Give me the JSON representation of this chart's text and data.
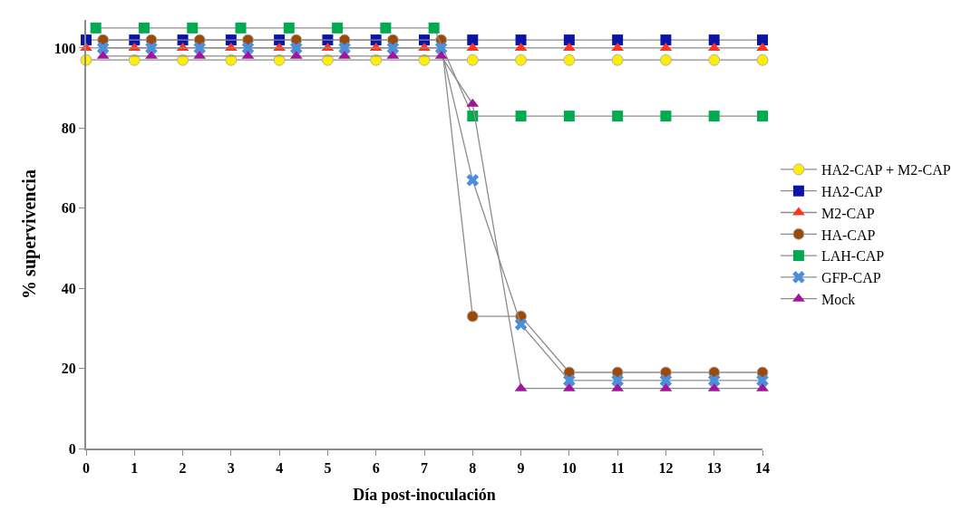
{
  "chart_data": {
    "type": "line",
    "xlabel": "Día post-inoculación",
    "ylabel": "% supervivencia",
    "xlim": [
      0,
      14
    ],
    "ylim": [
      0,
      107
    ],
    "xticks": [
      0,
      1,
      2,
      3,
      4,
      5,
      6,
      7,
      8,
      9,
      10,
      11,
      12,
      13,
      14
    ],
    "yticks": [
      0,
      20,
      40,
      60,
      80,
      100
    ],
    "legend": "right",
    "line_style": "solid",
    "series": [
      {
        "name": "HA2-CAP + M2-CAP",
        "color": "#ffee00",
        "marker": "circle",
        "x": [
          0,
          1,
          2,
          3,
          4,
          5,
          6,
          7,
          8,
          9,
          10,
          11,
          12,
          13,
          14
        ],
        "values": [
          97,
          97,
          97,
          97,
          97,
          97,
          97,
          97,
          97,
          97,
          97,
          97,
          97,
          97,
          97
        ]
      },
      {
        "name": "HA2-CAP",
        "color": "#0a14a8",
        "marker": "square",
        "x": [
          0,
          1,
          2,
          3,
          4,
          5,
          6,
          7,
          8,
          9,
          10,
          11,
          12,
          13,
          14
        ],
        "values": [
          102,
          102,
          102,
          102,
          102,
          102,
          102,
          102,
          102,
          102,
          102,
          102,
          102,
          102,
          102
        ]
      },
      {
        "name": "M2-CAP",
        "color": "#ff3322",
        "marker": "triangle",
        "x": [
          0,
          1,
          2,
          3,
          4,
          5,
          6,
          7,
          8,
          9,
          10,
          11,
          12,
          13,
          14
        ],
        "values": [
          100,
          100,
          100,
          100,
          100,
          100,
          100,
          100,
          100,
          100,
          100,
          100,
          100,
          100,
          100
        ]
      },
      {
        "name": "HA-CAP",
        "color": "#9c4a06",
        "marker": "circle",
        "x": [
          0.35,
          1.35,
          2.35,
          3.35,
          4.35,
          5.35,
          6.35,
          7.35,
          8,
          9,
          10,
          11,
          12,
          13,
          14
        ],
        "values": [
          102,
          102,
          102,
          102,
          102,
          102,
          102,
          102,
          33,
          33,
          19,
          19,
          19,
          19,
          19
        ]
      },
      {
        "name": "LAH-CAP",
        "color": "#00aa50",
        "marker": "square",
        "x": [
          0.2,
          1.2,
          2.2,
          3.2,
          4.2,
          5.2,
          6.2,
          7.2,
          8,
          9,
          10,
          11,
          12,
          13,
          14
        ],
        "values": [
          105,
          105,
          105,
          105,
          105,
          105,
          105,
          105,
          83,
          83,
          83,
          83,
          83,
          83,
          83
        ]
      },
      {
        "name": "GFP-CAP",
        "color": "#4a8edc",
        "marker": "cross",
        "x": [
          0.35,
          1.35,
          2.35,
          3.35,
          4.35,
          5.35,
          6.35,
          7.35,
          8,
          9,
          10,
          11,
          12,
          13,
          14
        ],
        "values": [
          100,
          100,
          100,
          100,
          100,
          100,
          100,
          100,
          67,
          31,
          17,
          17,
          17,
          17,
          17
        ]
      },
      {
        "name": "Mock",
        "color": "#a0159c",
        "marker": "triangle",
        "x": [
          0.35,
          1.35,
          2.35,
          3.35,
          4.35,
          5.35,
          6.35,
          7.35,
          8,
          9,
          10,
          11,
          12,
          13,
          14
        ],
        "values": [
          98,
          98,
          98,
          98,
          98,
          98,
          98,
          98,
          86,
          15,
          15,
          15,
          15,
          15,
          15
        ]
      }
    ]
  }
}
